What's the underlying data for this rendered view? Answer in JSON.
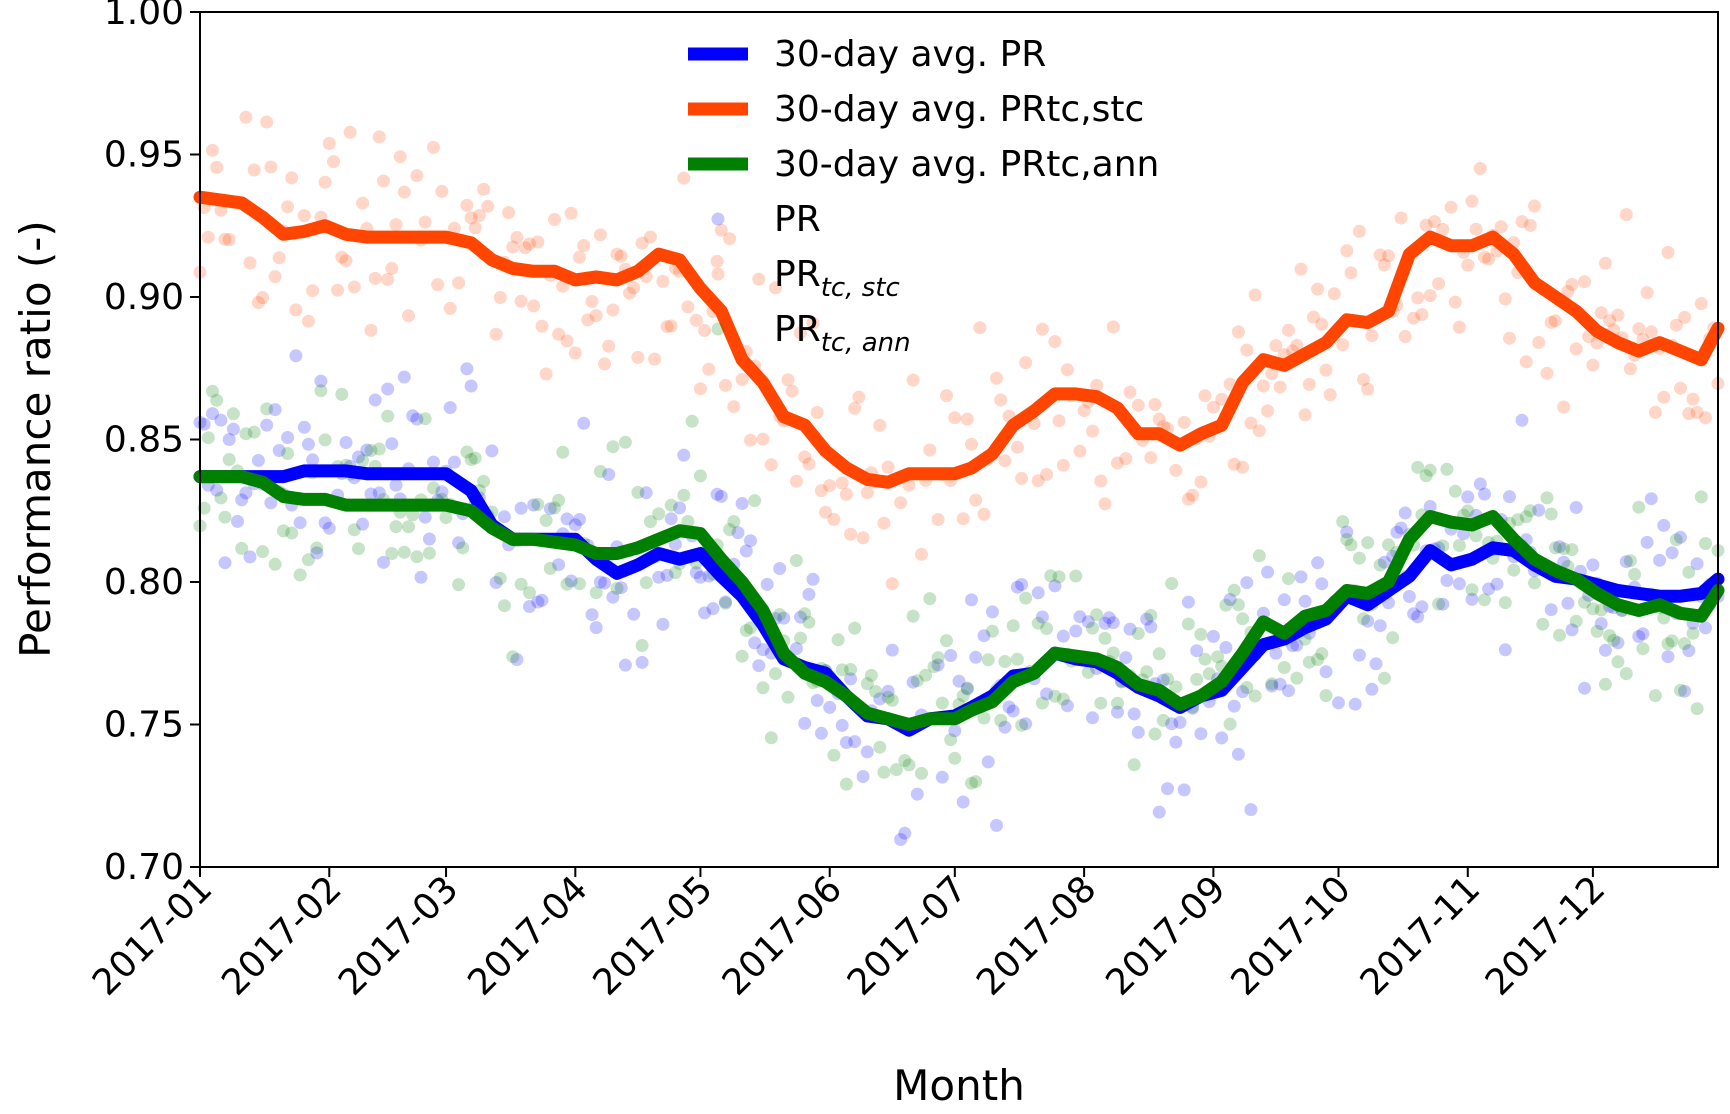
{
  "chart_data": {
    "type": "line",
    "title": "",
    "xlabel": "Month",
    "ylabel": "Performance ratio (-)",
    "ylim": [
      0.7,
      1.0
    ],
    "xlim": [
      0,
      364
    ],
    "yticks": [
      "0.70",
      "0.75",
      "0.80",
      "0.85",
      "0.90",
      "0.95",
      "1.00"
    ],
    "xticks": [
      {
        "label": "2017-01",
        "day": 0
      },
      {
        "label": "2017-02",
        "day": 31
      },
      {
        "label": "2017-03",
        "day": 59
      },
      {
        "label": "2017-04",
        "day": 90
      },
      {
        "label": "2017-05",
        "day": 120
      },
      {
        "label": "2017-06",
        "day": 151
      },
      {
        "label": "2017-07",
        "day": 181
      },
      {
        "label": "2017-08",
        "day": 212
      },
      {
        "label": "2017-09",
        "day": 243
      },
      {
        "label": "2017-10",
        "day": 273
      },
      {
        "label": "2017-11",
        "day": 304
      },
      {
        "label": "2017-12",
        "day": 334
      }
    ],
    "legend": {
      "position": "top-center",
      "entries": [
        {
          "label": "30-day avg. PR",
          "kind": "line",
          "color": "#0000ff"
        },
        {
          "label": "30-day avg. PRtc,stc",
          "kind": "line",
          "color": "#ff4500"
        },
        {
          "label": "30-day avg. PRtc,ann",
          "kind": "line",
          "color": "#008000"
        },
        {
          "label": "PR",
          "kind": "scatter",
          "color": "#0000ff"
        },
        {
          "label": "PR",
          "sub": "tc, stc",
          "kind": "scatter",
          "color": "#ff4500"
        },
        {
          "label": "PR",
          "sub": "tc, ann",
          "kind": "scatter",
          "color": "#008000"
        }
      ]
    },
    "series": [
      {
        "name": "30-day avg. PR",
        "color": "#0000ff",
        "x": [
          0,
          10,
          20,
          25,
          30,
          35,
          40,
          50,
          59,
          65,
          70,
          75,
          80,
          90,
          95,
          100,
          105,
          110,
          115,
          120,
          125,
          130,
          135,
          140,
          145,
          150,
          155,
          160,
          165,
          170,
          175,
          181,
          185,
          190,
          195,
          200,
          205,
          210,
          215,
          220,
          225,
          230,
          235,
          240,
          245,
          250,
          255,
          260,
          265,
          270,
          275,
          280,
          285,
          290,
          295,
          300,
          305,
          310,
          315,
          320,
          325,
          330,
          335,
          340,
          345,
          350,
          355,
          360,
          364
        ],
        "values": [
          0.837,
          0.837,
          0.837,
          0.839,
          0.839,
          0.839,
          0.838,
          0.838,
          0.838,
          0.832,
          0.82,
          0.815,
          0.815,
          0.815,
          0.808,
          0.803,
          0.806,
          0.81,
          0.808,
          0.81,
          0.802,
          0.795,
          0.785,
          0.773,
          0.77,
          0.768,
          0.76,
          0.753,
          0.752,
          0.748,
          0.752,
          0.753,
          0.756,
          0.76,
          0.767,
          0.768,
          0.775,
          0.773,
          0.772,
          0.768,
          0.763,
          0.76,
          0.756,
          0.76,
          0.762,
          0.77,
          0.778,
          0.78,
          0.784,
          0.787,
          0.795,
          0.792,
          0.797,
          0.802,
          0.811,
          0.806,
          0.808,
          0.812,
          0.811,
          0.806,
          0.802,
          0.801,
          0.799,
          0.797,
          0.796,
          0.795,
          0.795,
          0.796,
          0.801
        ]
      },
      {
        "name": "30-day avg. PRtc,stc",
        "color": "#ff4500",
        "x": [
          0,
          5,
          10,
          15,
          20,
          25,
          30,
          35,
          40,
          45,
          50,
          59,
          65,
          70,
          75,
          80,
          85,
          90,
          95,
          100,
          105,
          110,
          115,
          120,
          125,
          130,
          135,
          140,
          145,
          150,
          155,
          160,
          165,
          170,
          175,
          181,
          185,
          190,
          195,
          200,
          205,
          210,
          215,
          220,
          225,
          230,
          235,
          240,
          245,
          250,
          255,
          260,
          265,
          270,
          275,
          280,
          285,
          290,
          295,
          300,
          305,
          310,
          315,
          320,
          325,
          330,
          335,
          340,
          345,
          350,
          355,
          360,
          364
        ],
        "values": [
          0.935,
          0.934,
          0.933,
          0.928,
          0.922,
          0.923,
          0.925,
          0.922,
          0.921,
          0.921,
          0.921,
          0.921,
          0.919,
          0.913,
          0.91,
          0.909,
          0.909,
          0.906,
          0.907,
          0.906,
          0.909,
          0.915,
          0.913,
          0.903,
          0.895,
          0.878,
          0.87,
          0.858,
          0.855,
          0.846,
          0.84,
          0.836,
          0.835,
          0.838,
          0.838,
          0.838,
          0.84,
          0.845,
          0.855,
          0.86,
          0.866,
          0.866,
          0.865,
          0.861,
          0.852,
          0.852,
          0.848,
          0.852,
          0.855,
          0.87,
          0.878,
          0.876,
          0.88,
          0.884,
          0.892,
          0.891,
          0.895,
          0.915,
          0.921,
          0.918,
          0.918,
          0.921,
          0.915,
          0.905,
          0.9,
          0.895,
          0.888,
          0.884,
          0.881,
          0.884,
          0.881,
          0.878,
          0.889
        ]
      },
      {
        "name": "30-day avg. PRtc,ann",
        "color": "#008000",
        "x": [
          0,
          10,
          15,
          20,
          25,
          30,
          35,
          40,
          50,
          59,
          65,
          70,
          75,
          80,
          90,
          95,
          100,
          105,
          110,
          115,
          120,
          125,
          130,
          135,
          140,
          145,
          150,
          155,
          160,
          165,
          170,
          175,
          181,
          185,
          190,
          195,
          200,
          205,
          210,
          215,
          220,
          225,
          230,
          235,
          240,
          245,
          250,
          255,
          260,
          265,
          270,
          275,
          280,
          285,
          290,
          295,
          300,
          305,
          310,
          315,
          320,
          325,
          330,
          335,
          340,
          345,
          350,
          355,
          360,
          364
        ],
        "values": [
          0.837,
          0.837,
          0.835,
          0.83,
          0.829,
          0.829,
          0.827,
          0.827,
          0.827,
          0.827,
          0.825,
          0.819,
          0.815,
          0.815,
          0.813,
          0.81,
          0.81,
          0.812,
          0.815,
          0.818,
          0.817,
          0.808,
          0.8,
          0.79,
          0.775,
          0.768,
          0.765,
          0.76,
          0.754,
          0.752,
          0.75,
          0.752,
          0.752,
          0.755,
          0.758,
          0.765,
          0.768,
          0.775,
          0.774,
          0.773,
          0.77,
          0.764,
          0.762,
          0.757,
          0.76,
          0.765,
          0.775,
          0.786,
          0.782,
          0.788,
          0.79,
          0.797,
          0.796,
          0.8,
          0.815,
          0.823,
          0.821,
          0.82,
          0.823,
          0.815,
          0.808,
          0.804,
          0.801,
          0.796,
          0.792,
          0.79,
          0.792,
          0.789,
          0.788,
          0.797
        ]
      }
    ]
  }
}
